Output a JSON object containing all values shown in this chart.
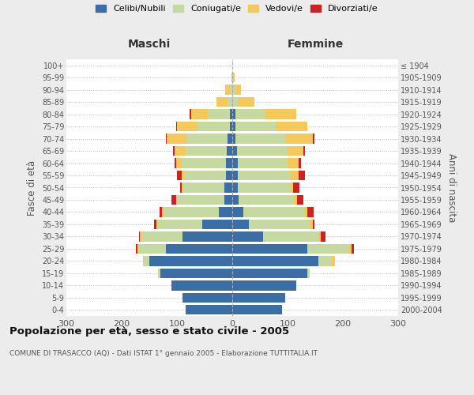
{
  "age_groups": [
    "0-4",
    "5-9",
    "10-14",
    "15-19",
    "20-24",
    "25-29",
    "30-34",
    "35-39",
    "40-44",
    "45-49",
    "50-54",
    "55-59",
    "60-64",
    "65-69",
    "70-74",
    "75-79",
    "80-84",
    "85-89",
    "90-94",
    "95-99",
    "100+"
  ],
  "birth_years": [
    "2000-2004",
    "1995-1999",
    "1990-1994",
    "1985-1989",
    "1980-1984",
    "1975-1979",
    "1970-1974",
    "1965-1969",
    "1960-1964",
    "1955-1959",
    "1950-1954",
    "1945-1949",
    "1940-1944",
    "1935-1939",
    "1930-1934",
    "1925-1929",
    "1920-1924",
    "1915-1919",
    "1910-1914",
    "1905-1909",
    "≤ 1904"
  ],
  "male": {
    "celibi": [
      85,
      90,
      110,
      130,
      150,
      120,
      90,
      55,
      25,
      15,
      14,
      12,
      12,
      10,
      8,
      5,
      5,
      0,
      0,
      0,
      0
    ],
    "coniugati": [
      0,
      0,
      0,
      5,
      12,
      50,
      75,
      80,
      100,
      85,
      75,
      75,
      80,
      75,
      75,
      60,
      40,
      8,
      5,
      0,
      0
    ],
    "vedovi": [
      0,
      0,
      0,
      0,
      0,
      2,
      2,
      2,
      2,
      2,
      3,
      5,
      10,
      20,
      35,
      35,
      30,
      20,
      8,
      2,
      0
    ],
    "divorziati": [
      0,
      0,
      0,
      0,
      0,
      2,
      2,
      4,
      4,
      8,
      2,
      8,
      2,
      2,
      2,
      2,
      2,
      0,
      0,
      0,
      0
    ]
  },
  "female": {
    "nubili": [
      90,
      95,
      115,
      135,
      155,
      135,
      55,
      30,
      20,
      12,
      10,
      10,
      10,
      8,
      5,
      5,
      5,
      0,
      0,
      0,
      0
    ],
    "coniugate": [
      0,
      0,
      0,
      5,
      25,
      75,
      100,
      110,
      110,
      100,
      95,
      95,
      90,
      90,
      90,
      75,
      55,
      10,
      5,
      2,
      0
    ],
    "vedove": [
      0,
      0,
      0,
      0,
      5,
      5,
      5,
      5,
      5,
      5,
      5,
      15,
      20,
      30,
      50,
      55,
      55,
      30,
      10,
      2,
      0
    ],
    "divorziate": [
      0,
      0,
      0,
      0,
      0,
      5,
      8,
      4,
      12,
      12,
      12,
      12,
      4,
      4,
      4,
      0,
      0,
      0,
      0,
      0,
      0
    ]
  },
  "colors": {
    "celibi": "#3a6ea5",
    "coniugati": "#c5d9a0",
    "vedovi": "#f5c85c",
    "divorziati": "#cc2222"
  },
  "xlim": 300,
  "title": "Popolazione per età, sesso e stato civile - 2005",
  "subtitle": "COMUNE DI TRASACCO (AQ) - Dati ISTAT 1° gennaio 2005 - Elaborazione TUTTITALIA.IT",
  "ylabel_left": "Fasce di età",
  "ylabel_right": "Anni di nascita",
  "xlabel_left": "Maschi",
  "xlabel_right": "Femmine",
  "bg_color": "#ececec",
  "plot_bg": "#ffffff"
}
